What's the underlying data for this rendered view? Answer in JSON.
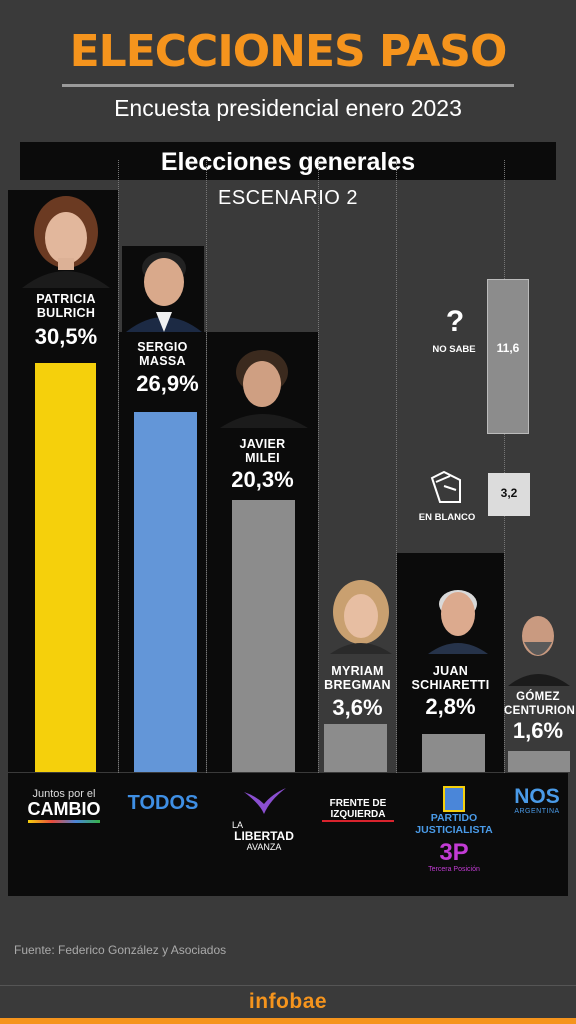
{
  "header": {
    "title": "ELECCIONES PASO",
    "subtitle": "Encuesta presidencial enero 2023",
    "banner": "Elecciones generales",
    "scenario": "ESCENARIO 2"
  },
  "colors": {
    "accent": "#f5941d",
    "bulrich": "#f5d00c",
    "massa": "#6396d8",
    "gray": "#8c8c8c"
  },
  "chart_data": {
    "type": "bar",
    "categories": [
      "PATRICIA BULRICH",
      "SERGIO MASSA",
      "JAVIER MILEI",
      "MYRIAM BREGMAN",
      "JUAN SCHIARETTI",
      "GÓMEZ CENTURION"
    ],
    "values": [
      30.5,
      26.9,
      20.3,
      3.6,
      2.8,
      1.6
    ],
    "value_labels": [
      "30,5%",
      "26,9%",
      "20,3%",
      "3,6%",
      "2,8%",
      "1,6%"
    ],
    "others": [
      {
        "label": "NO SABE",
        "value": 11.6,
        "value_label": "11,6"
      },
      {
        "label": "EN BLANCO",
        "value": 3.2,
        "value_label": "3,2"
      }
    ]
  },
  "candidates": [
    {
      "first": "PATRICIA",
      "last": "BULRICH",
      "value": "30,5%",
      "party": "Juntos por el CAMBIO"
    },
    {
      "first": "SERGIO",
      "last": "MASSA",
      "value": "26,9%",
      "party": "TODOS"
    },
    {
      "first": "JAVIER",
      "last": "MILEI",
      "value": "20,3%",
      "party": "LA LIBERTAD AVANZA"
    },
    {
      "first": "MYRIAM",
      "last": "BREGMAN",
      "value": "3,6%",
      "party": "FRENTE DE IZQUIERDA"
    },
    {
      "first": "JUAN",
      "last": "SCHIARETTI",
      "value": "2,8%",
      "party": "PARTIDO JUSTICIALISTA"
    },
    {
      "first": "GÓMEZ",
      "last": "CENTURION",
      "value": "1,6%",
      "party": "NOS ARGENTINA"
    }
  ],
  "parties": {
    "jxc_top": "Juntos por el",
    "jxc_bottom": "CAMBIO",
    "todos": "TODOS",
    "lla_1": "LA",
    "lla_2": "LIBERTAD",
    "lla_3": "AVANZA",
    "fit_1": "FRENTE DE",
    "fit_2": "IZQUIERDA",
    "pj_1": "PARTIDO",
    "pj_2": "JUSTICIALISTA",
    "tp_logo": "3P",
    "tp_sub": "Tercera Posición",
    "nos": "NOS",
    "nos_sub": "ARGENTINA"
  },
  "source": "Fuente: Federico González y Asociados",
  "brand": "infobae"
}
